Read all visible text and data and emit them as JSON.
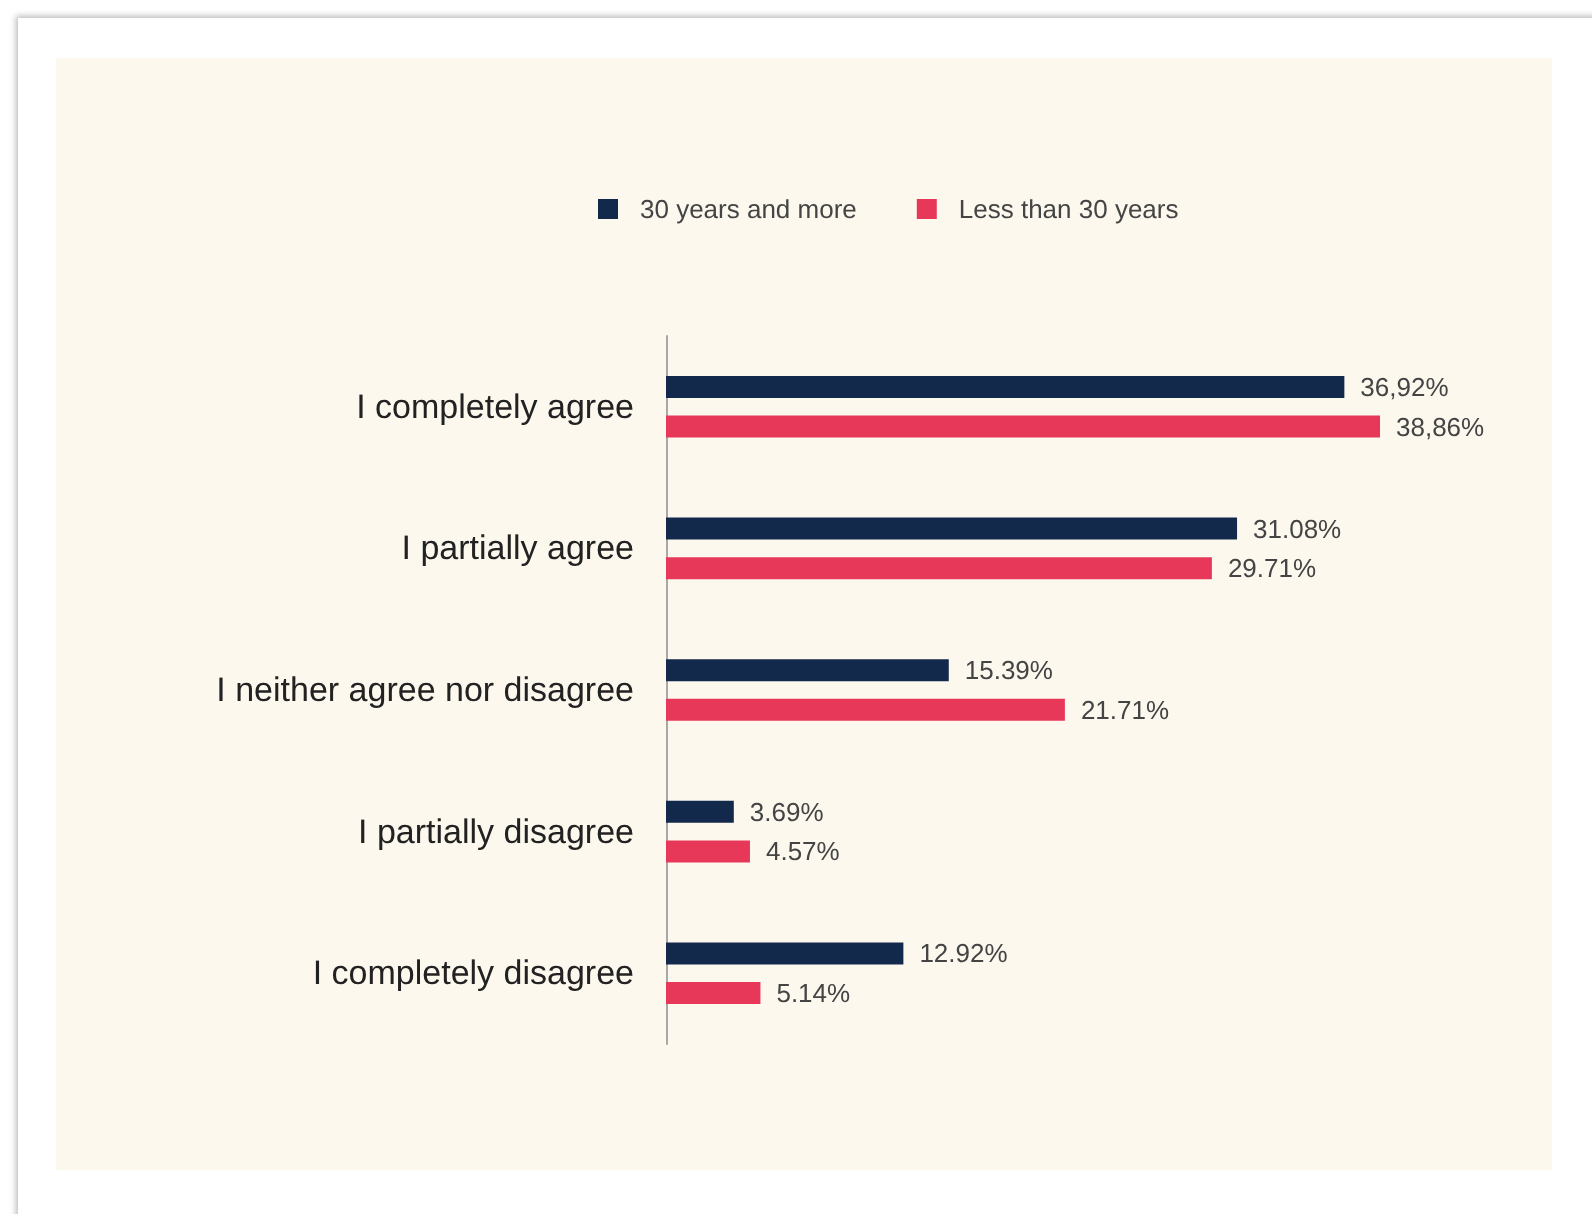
{
  "chart_data": {
    "type": "bar",
    "orientation": "horizontal",
    "categories": [
      "I completely agree",
      "I partially agree",
      "I neither agree nor disagree",
      "I partially disagree",
      "I completely disagree"
    ],
    "series": [
      {
        "name": "30 years and more",
        "color": "#13294b",
        "values": [
          36.92,
          31.08,
          15.39,
          3.69,
          12.92
        ],
        "value_labels": [
          "36,92%",
          "31.08%",
          "15.39%",
          "3.69%",
          "12.92%"
        ]
      },
      {
        "name": "Less than 30 years",
        "color": "#e8385a",
        "values": [
          38.86,
          29.71,
          21.71,
          4.57,
          5.14
        ],
        "value_labels": [
          "38,86%",
          "29.71%",
          "21.71%",
          "4.57%",
          "5.14%"
        ]
      }
    ],
    "legend": "top",
    "tick_labels": "y"
  }
}
